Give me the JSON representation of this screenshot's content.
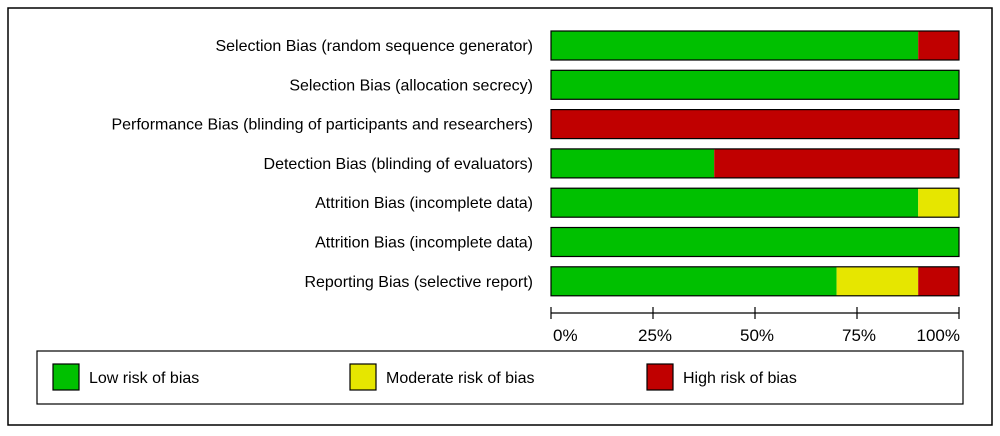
{
  "chart_data": {
    "type": "bar",
    "orientation": "horizontal",
    "stacked": true,
    "categories": [
      "Selection Bias (random sequence generator)",
      "Selection Bias (allocation secrecy)",
      "Performance Bias (blinding of participants and researchers)",
      "Detection Bias (blinding of evaluators)",
      "Attrition Bias (incomplete data)",
      "Attrition Bias (incomplete data)",
      "Reporting Bias (selective report)"
    ],
    "series": [
      {
        "name": "Low risk of bias",
        "color": "#00c000",
        "values": [
          90,
          100,
          0,
          40,
          90,
          100,
          70
        ]
      },
      {
        "name": "Moderate risk of bias",
        "color": "#e6e600",
        "values": [
          0,
          0,
          0,
          0,
          10,
          0,
          20
        ]
      },
      {
        "name": "High risk of bias",
        "color": "#c00000",
        "values": [
          10,
          0,
          100,
          60,
          0,
          0,
          10
        ]
      }
    ],
    "x_ticks": [
      "0%",
      "25%",
      "50%",
      "75%",
      "100%"
    ],
    "xlim": [
      0,
      100
    ],
    "xlabel": "",
    "ylabel": "",
    "title": "",
    "grid": false,
    "legend_position": "bottom"
  }
}
